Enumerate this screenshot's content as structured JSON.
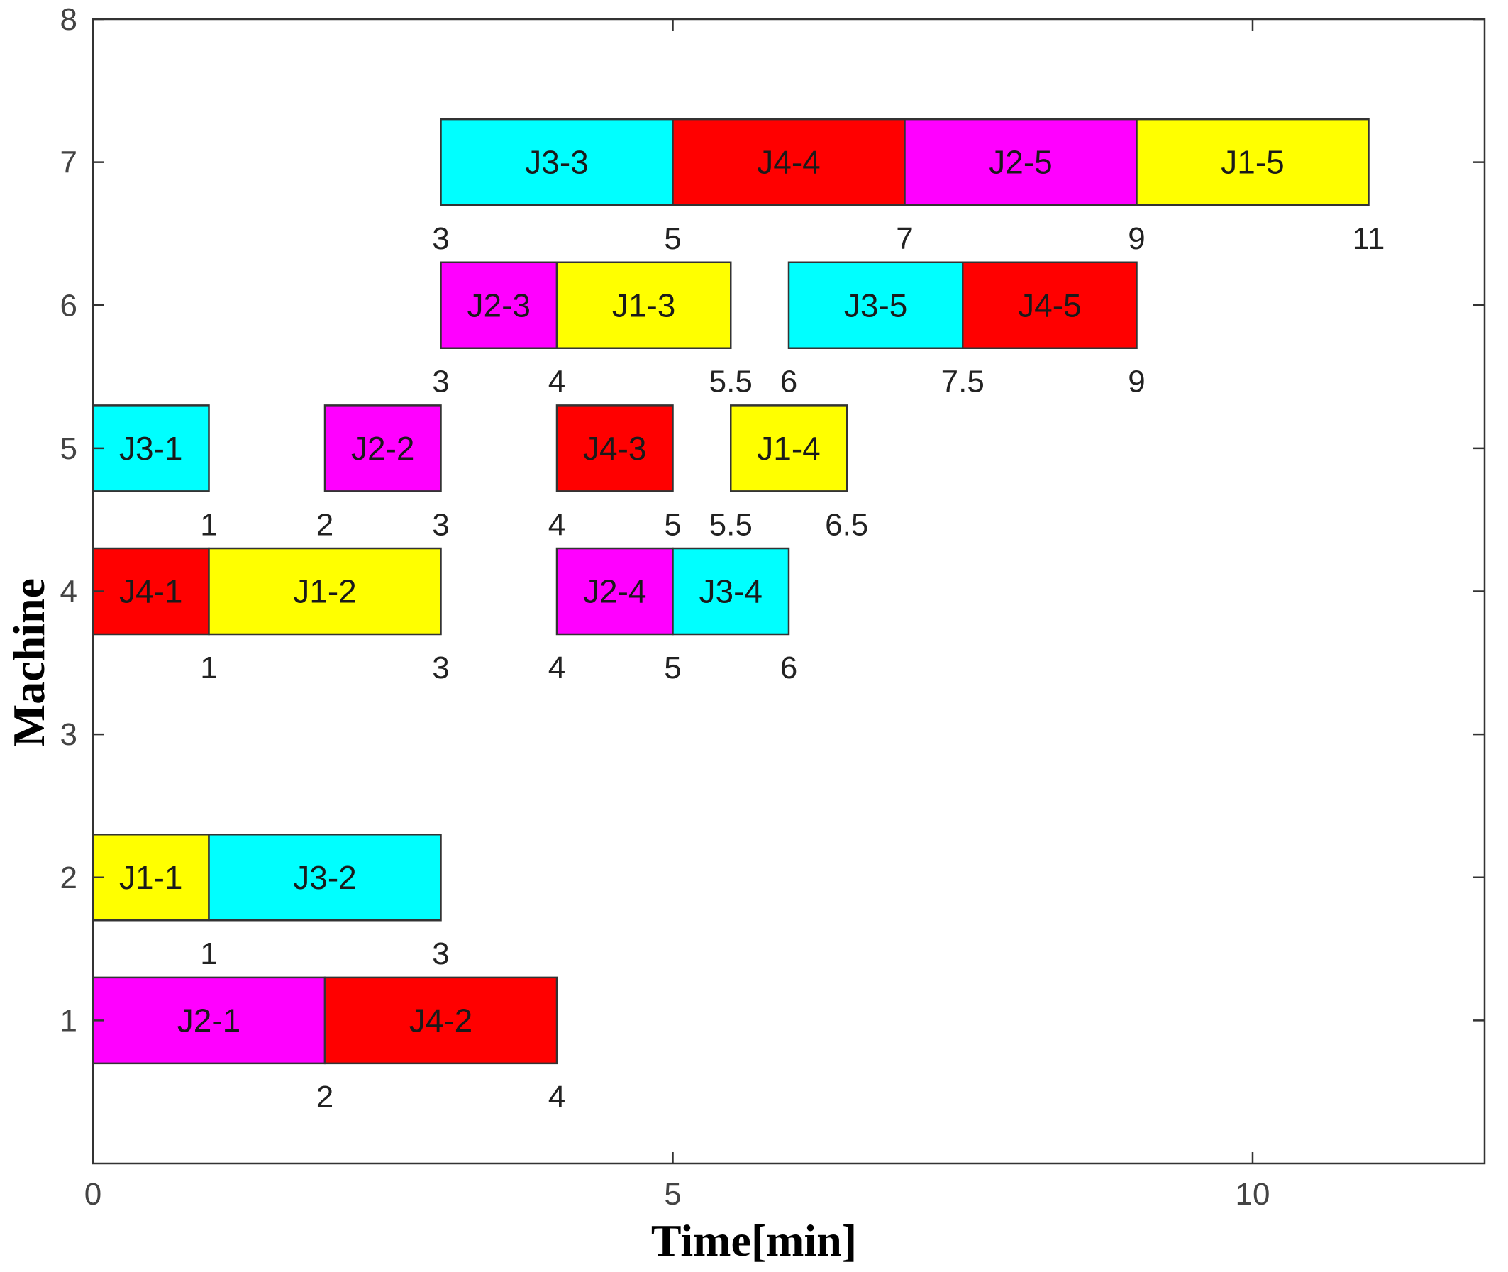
{
  "chart_data": {
    "type": "gantt",
    "title": "",
    "xlabel": "Time[min]",
    "ylabel": "Machine",
    "xlim": [
      0,
      12
    ],
    "ylim": [
      0,
      8
    ],
    "x_ticks": [
      0,
      5,
      10
    ],
    "y_ticks": [
      1,
      2,
      3,
      4,
      5,
      6,
      7,
      8
    ],
    "grid": false,
    "colors": {
      "J1": "#ffff00",
      "J2": "#ff00ff",
      "J3": "#00ffff",
      "J4": "#ff0000"
    },
    "operations": [
      {
        "label": "J2-1",
        "job": "J2",
        "machine": 1,
        "start": 0,
        "end": 2
      },
      {
        "label": "J4-2",
        "job": "J4",
        "machine": 1,
        "start": 2,
        "end": 4
      },
      {
        "label": "J1-1",
        "job": "J1",
        "machine": 2,
        "start": 0,
        "end": 1
      },
      {
        "label": "J3-2",
        "job": "J3",
        "machine": 2,
        "start": 1,
        "end": 3
      },
      {
        "label": "J4-1",
        "job": "J4",
        "machine": 4,
        "start": 0,
        "end": 1
      },
      {
        "label": "J1-2",
        "job": "J1",
        "machine": 4,
        "start": 1,
        "end": 3
      },
      {
        "label": "J2-4",
        "job": "J2",
        "machine": 4,
        "start": 4,
        "end": 5
      },
      {
        "label": "J3-4",
        "job": "J3",
        "machine": 4,
        "start": 5,
        "end": 6
      },
      {
        "label": "J3-1",
        "job": "J3",
        "machine": 5,
        "start": 0,
        "end": 1
      },
      {
        "label": "J2-2",
        "job": "J2",
        "machine": 5,
        "start": 2,
        "end": 3
      },
      {
        "label": "J4-3",
        "job": "J4",
        "machine": 5,
        "start": 4,
        "end": 5
      },
      {
        "label": "J1-4",
        "job": "J1",
        "machine": 5,
        "start": 5.5,
        "end": 6.5
      },
      {
        "label": "J2-3",
        "job": "J2",
        "machine": 6,
        "start": 3,
        "end": 4
      },
      {
        "label": "J1-3",
        "job": "J1",
        "machine": 6,
        "start": 4,
        "end": 5.5
      },
      {
        "label": "J3-5",
        "job": "J3",
        "machine": 6,
        "start": 6,
        "end": 7.5
      },
      {
        "label": "J4-5",
        "job": "J4",
        "machine": 6,
        "start": 7.5,
        "end": 9
      },
      {
        "label": "J3-3",
        "job": "J3",
        "machine": 7,
        "start": 3,
        "end": 5
      },
      {
        "label": "J4-4",
        "job": "J4",
        "machine": 7,
        "start": 5,
        "end": 7
      },
      {
        "label": "J2-5",
        "job": "J2",
        "machine": 7,
        "start": 7,
        "end": 9
      },
      {
        "label": "J1-5",
        "job": "J1",
        "machine": 7,
        "start": 9,
        "end": 11
      }
    ],
    "time_labels": [
      {
        "machine": 1,
        "values": [
          "2",
          "4"
        ]
      },
      {
        "machine": 2,
        "values": [
          "1",
          "3"
        ]
      },
      {
        "machine": 4,
        "values": [
          "1",
          "3",
          "4",
          "5",
          "6"
        ]
      },
      {
        "machine": 5,
        "values": [
          "1",
          "2",
          "3",
          "4",
          "5",
          "5.5",
          "6.5"
        ]
      },
      {
        "machine": 6,
        "values": [
          "3",
          "4",
          "5.5",
          "6",
          "7.5",
          "9"
        ]
      },
      {
        "machine": 7,
        "values": [
          "3",
          "5",
          "7",
          "9",
          "11"
        ]
      }
    ]
  }
}
